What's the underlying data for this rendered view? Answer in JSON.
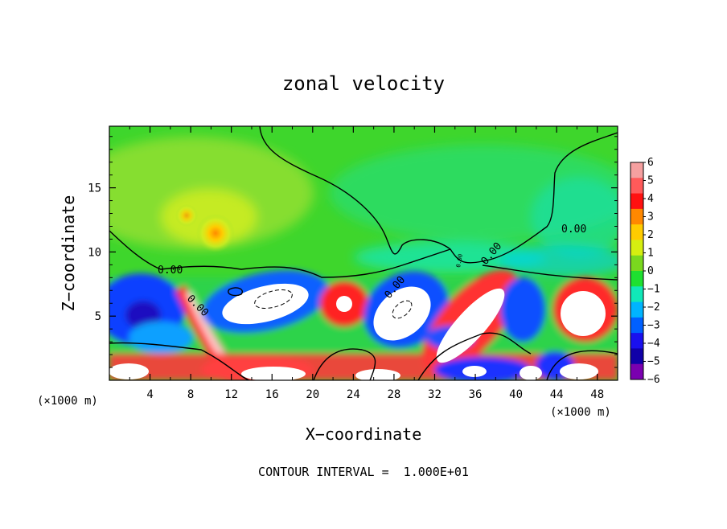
{
  "chart_data": {
    "type": "heatmap",
    "title": "zonal velocity",
    "xlabel": "X−coordinate",
    "ylabel": "Z−coordinate",
    "x_unit_left": "(×1000 m)",
    "x_unit_right": "(×1000 m)",
    "x_ticks": [
      "4",
      "8",
      "12",
      "16",
      "20",
      "24",
      "28",
      "32",
      "36",
      "40",
      "44",
      "48"
    ],
    "x_tick_values": [
      4,
      8,
      12,
      16,
      20,
      24,
      28,
      32,
      36,
      40,
      44,
      48
    ],
    "y_ticks": [
      "5",
      "10",
      "15"
    ],
    "y_tick_values": [
      5,
      10,
      15
    ],
    "xlim": [
      0,
      50
    ],
    "ylim": [
      0,
      19.8
    ],
    "colorbar": {
      "labels": [
        "6",
        "5",
        "4",
        "3",
        "2",
        "1",
        "0",
        "−1",
        "−2",
        "−3",
        "−4",
        "−5",
        "−6"
      ],
      "range": [
        -6,
        6
      ],
      "colors": [
        "#f5a0a0",
        "#ff5a5a",
        "#ff1010",
        "#ff8800",
        "#ffcc00",
        "#d6ee10",
        "#7ad81e",
        "#1ee030",
        "#10e8b8",
        "#00b4ff",
        "#0060ff",
        "#1a10ee",
        "#1000a8",
        "#7a00b0"
      ]
    },
    "contour_labels": [
      "0.00",
      "0.00",
      "0.00",
      "0.00",
      "0.00",
      "0.00"
    ],
    "footer": "CONTOUR INTERVAL =  1.000E+01",
    "grid": false
  }
}
